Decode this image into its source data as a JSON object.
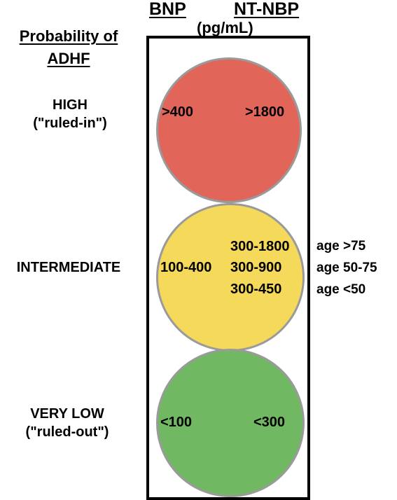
{
  "header": {
    "bnp": "BNP",
    "ntnbp": "NT-NBP",
    "unit": "(pg/mL)"
  },
  "probability_title_line1": "Probability of",
  "probability_title_line2": "ADHF",
  "levels": [
    {
      "name": "HIGH",
      "note": "(\"ruled-in\")",
      "color": "#e2655a",
      "bnp": ">400",
      "ntnbp": ">1800"
    },
    {
      "name": "INTERMEDIATE",
      "note": "",
      "color": "#f5d95b",
      "bnp": "100-400",
      "ntnbp_by_age": [
        {
          "value": "300-1800",
          "age": "age >75"
        },
        {
          "value": "300-900",
          "age": "age 50-75"
        },
        {
          "value": "300-450",
          "age": "age <50"
        }
      ]
    },
    {
      "name": "VERY LOW",
      "note": "(\"ruled-out\")",
      "color": "#71b862",
      "bnp": "<100",
      "ntnbp": "<300"
    }
  ]
}
